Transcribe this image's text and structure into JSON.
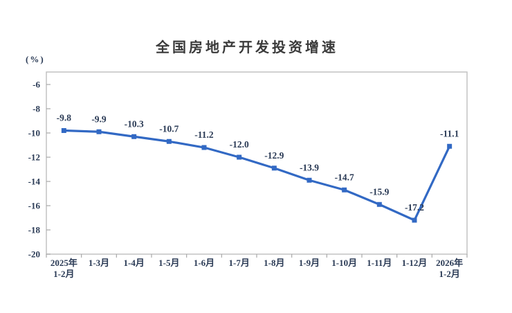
{
  "chart": {
    "title": "全国房地产开发投资增速",
    "unit_label": "(%)"
  },
  "chart_data": {
    "type": "line",
    "title": "全国房地产开发投资增速",
    "unit_label": "(%)",
    "categories": [
      "2025年|1-2月",
      "1-3月",
      "1-4月",
      "1-5月",
      "1-6月",
      "1-7月",
      "1-8月",
      "1-9月",
      "1-10月",
      "1-11月",
      "1-12月",
      "2026年|1-2月"
    ],
    "values": [
      -9.8,
      -9.9,
      -10.3,
      -10.7,
      -11.2,
      -12.0,
      -12.9,
      -13.9,
      -14.7,
      -15.9,
      -17.2,
      -11.1
    ],
    "data_labels": [
      "-9.8",
      "-9.9",
      "-10.3",
      "-10.7",
      "-11.2",
      "-12.0",
      "-12.9",
      "-13.9",
      "-14.7",
      "-15.9",
      "-17.2",
      "-11.1"
    ],
    "xlabel": "",
    "ylabel": "(%)",
    "yticks": [
      -6,
      -8,
      -10,
      -12,
      -14,
      -16,
      -18,
      -20
    ],
    "ylim": [
      -20,
      -4.97
    ],
    "grid": false,
    "legend": "none",
    "marker": "square",
    "line_color": "#3269c4",
    "marker_color": "#3269c4",
    "text_color": "#2a3a55",
    "border_color": "#c2c2c2",
    "tick_color": "#a8a8a8",
    "background": "#ffffff"
  }
}
